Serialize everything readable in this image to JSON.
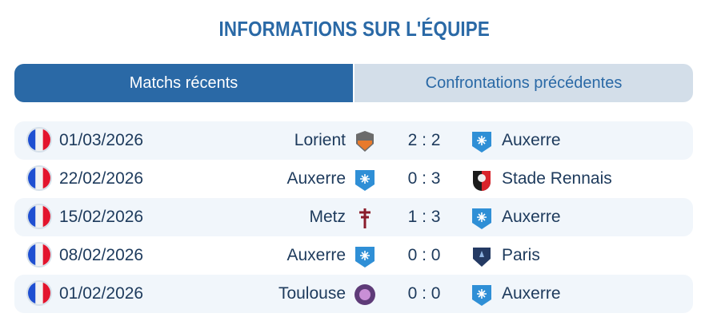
{
  "title": "INFORMATIONS SUR L'ÉQUIPE",
  "tabs": [
    {
      "label": "Matchs récents",
      "active": true
    },
    {
      "label": "Confrontations précédentes",
      "active": false
    }
  ],
  "matches": [
    {
      "country_flag": "france-flag-icon",
      "date": "01/03/2026",
      "home": "Lorient",
      "home_logo": "lorient-logo-icon",
      "score": "2 : 2",
      "away": "Auxerre",
      "away_logo": "auxerre-logo-icon"
    },
    {
      "country_flag": "france-flag-icon",
      "date": "22/02/2026",
      "home": "Auxerre",
      "home_logo": "auxerre-logo-icon",
      "score": "0 : 3",
      "away": "Stade Rennais",
      "away_logo": "rennes-logo-icon"
    },
    {
      "country_flag": "france-flag-icon",
      "date": "15/02/2026",
      "home": "Metz",
      "home_logo": "metz-logo-icon",
      "score": "1 : 3",
      "away": "Auxerre",
      "away_logo": "auxerre-logo-icon"
    },
    {
      "country_flag": "france-flag-icon",
      "date": "08/02/2026",
      "home": "Auxerre",
      "home_logo": "auxerre-logo-icon",
      "score": "0 : 0",
      "away": "Paris",
      "away_logo": "paris-fc-logo-icon"
    },
    {
      "country_flag": "france-flag-icon",
      "date": "01/02/2026",
      "home": "Toulouse",
      "home_logo": "toulouse-logo-icon",
      "score": "0 : 0",
      "away": "Auxerre",
      "away_logo": "auxerre-logo-icon"
    }
  ],
  "colors": {
    "accent": "#2a69a6",
    "tab_inactive": "#d3dee9",
    "row_stripe": "#f1f6fb",
    "text": "#1d3a5c"
  }
}
